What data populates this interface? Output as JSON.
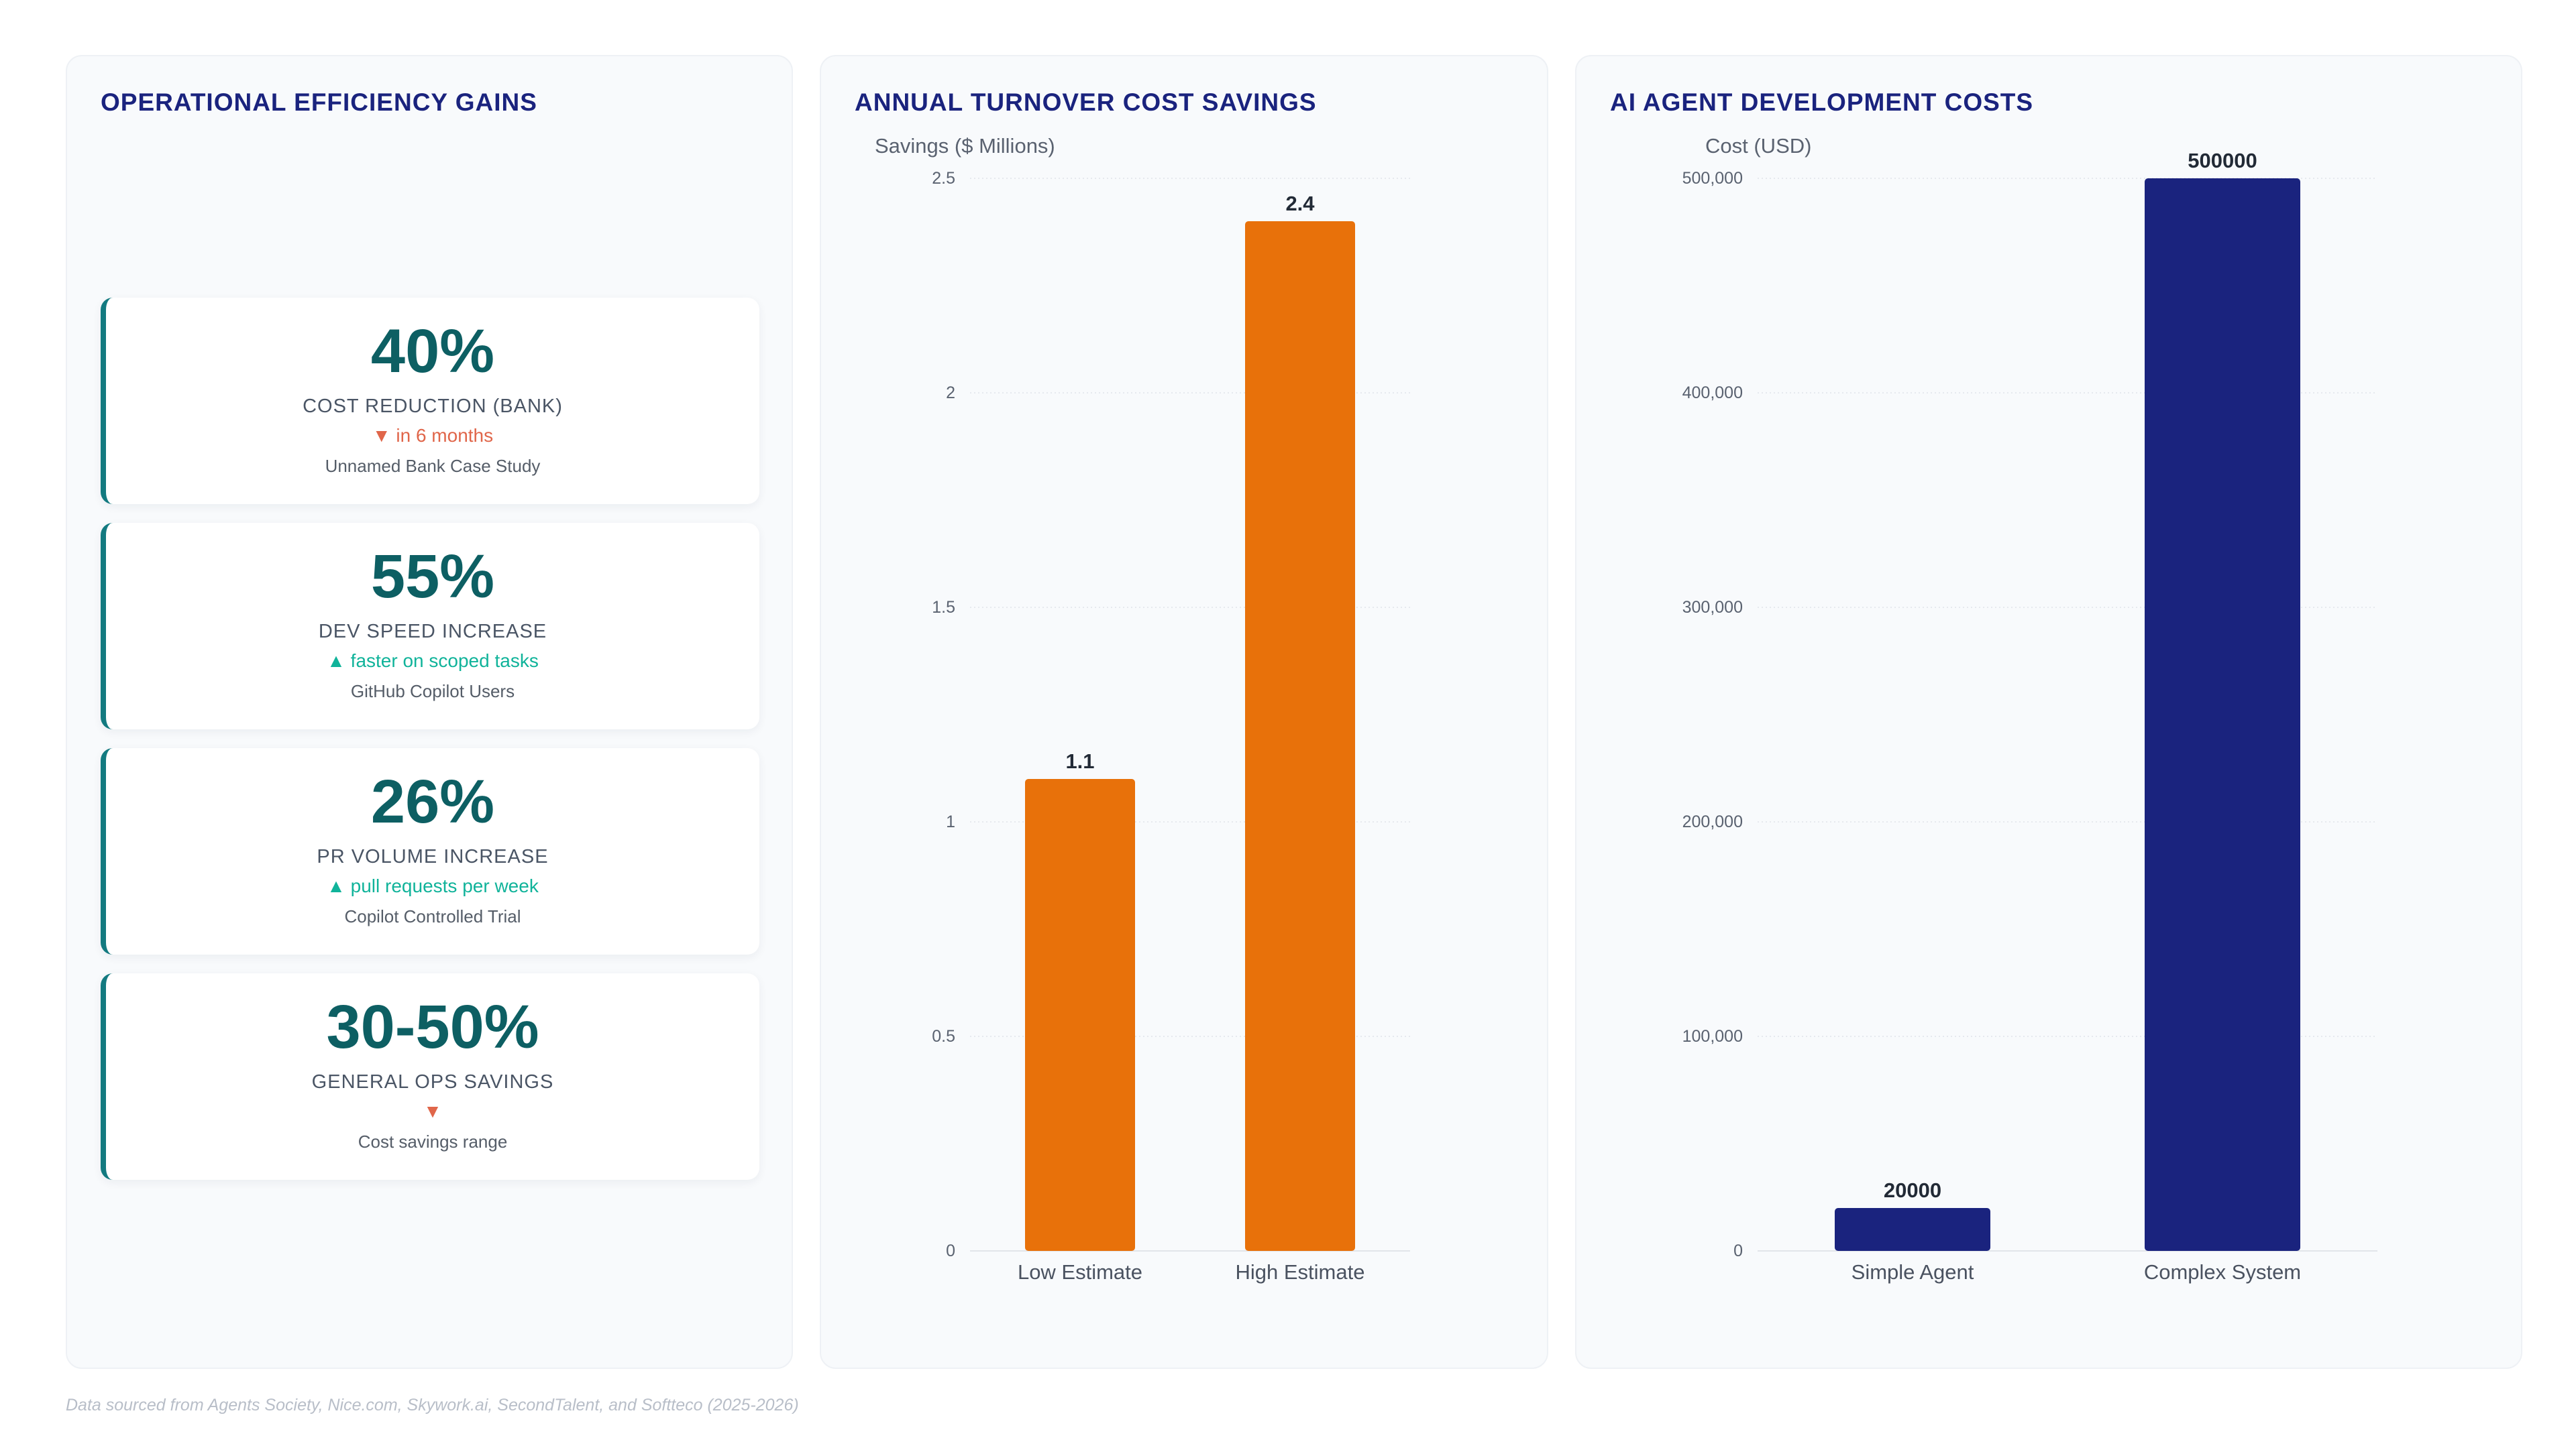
{
  "kpi_panel": {
    "title": "OPERATIONAL EFFICIENCY GAINS",
    "cards": [
      {
        "value": "40%",
        "label": "COST REDUCTION (BANK)",
        "trend": "▼ in 6 months",
        "direction": "down",
        "source": "Unnamed Bank Case Study"
      },
      {
        "value": "55%",
        "label": "DEV SPEED INCREASE",
        "trend": "▲ faster on scoped tasks",
        "direction": "up",
        "source": "GitHub Copilot Users"
      },
      {
        "value": "26%",
        "label": "PR VOLUME INCREASE",
        "trend": "▲ pull requests per week",
        "direction": "up",
        "source": "Copilot Controlled Trial"
      },
      {
        "value": "30-50%",
        "label": "GENERAL OPS SAVINGS",
        "trend": "▼",
        "direction": "down",
        "source": "Cost savings range"
      }
    ]
  },
  "chart_data": [
    {
      "type": "bar",
      "title": "ANNUAL TURNOVER COST SAVINGS",
      "ylabel": "Savings ($ Millions)",
      "xlabel": "",
      "categories": [
        "Low Estimate",
        "High Estimate"
      ],
      "values": [
        1.1,
        2.4
      ],
      "data_labels": [
        "1.1",
        "2.4"
      ],
      "ylim": [
        0,
        2.5
      ],
      "yticks": [
        0,
        0.5,
        1,
        1.5,
        2,
        2.5
      ],
      "ytick_labels": [
        "0",
        "0.5",
        "1",
        "1.5",
        "2",
        "2.5"
      ],
      "color": "#e8710a",
      "grid": true,
      "legend": "none"
    },
    {
      "type": "bar",
      "title": "AI AGENT DEVELOPMENT COSTS",
      "ylabel": "Cost (USD)",
      "xlabel": "",
      "categories": [
        "Simple Agent",
        "Complex System"
      ],
      "values": [
        20000,
        500000
      ],
      "data_labels": [
        "20000",
        "500000"
      ],
      "ylim": [
        0,
        500000
      ],
      "yticks": [
        0,
        100000,
        200000,
        300000,
        400000,
        500000
      ],
      "ytick_labels": [
        "0",
        "100,000",
        "200,000",
        "300,000",
        "400,000",
        "500,000"
      ],
      "color": "#1a237e",
      "grid": true,
      "legend": "none"
    }
  ],
  "footnote": "Data sourced from Agents Society, Nice.com, Skywork.ai, SecondTalent, and Softteco (2025-2026)"
}
